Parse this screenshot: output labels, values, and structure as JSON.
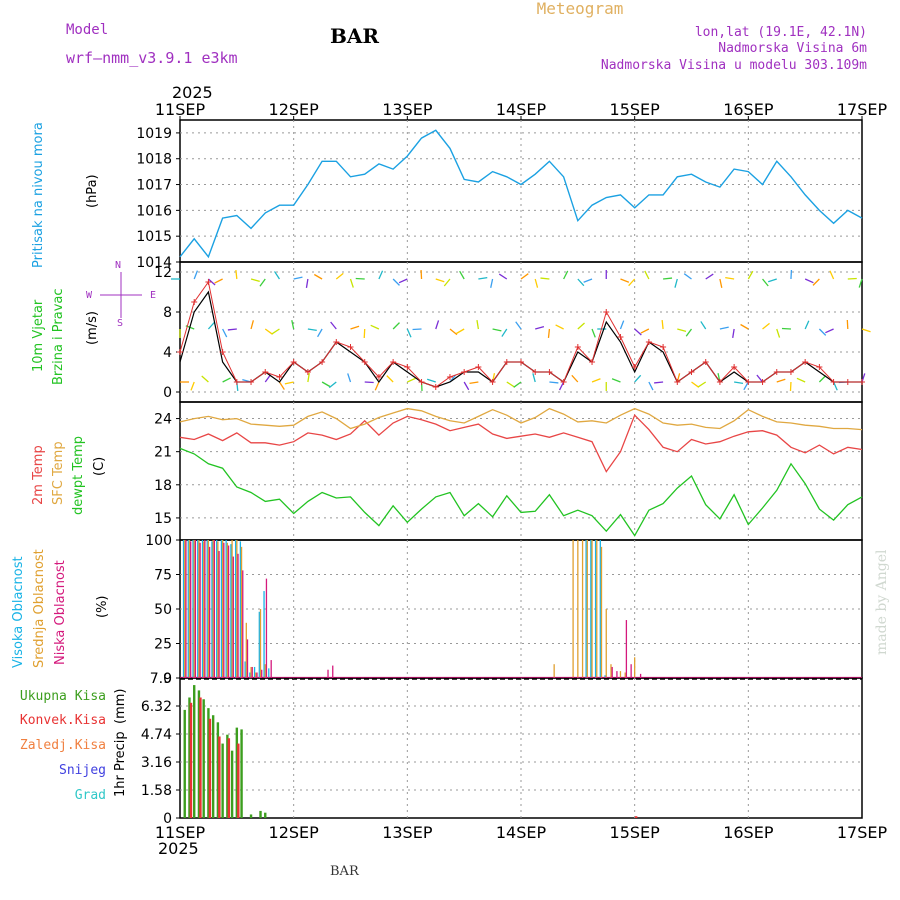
{
  "header": {
    "model_label": "Model",
    "model_name": "wrf—nmm_v3.9.1  e3km",
    "station": "BAR",
    "title": "Meteogram",
    "coords": "lon,lat (19.1E, 42.1N)",
    "elevation": "Nadmorska Visina 6m",
    "model_elevation": "Nadmorska Visina u modelu 303.109m",
    "footer_station": "BAR",
    "credit": "made by Angel",
    "year": "2025"
  },
  "colors": {
    "pressure": "#1ba1e2",
    "temp2m": "#e84646",
    "sfc": "#e0a841",
    "dewpt": "#22c322",
    "high_cloud": "#19b3e6",
    "mid_cloud": "#e0a030",
    "low_cloud": "#d4197c",
    "precip_total": "#3c9e1e",
    "precip_conv": "#e83232",
    "precip_frz": "#f08040",
    "snow": "#4040e0",
    "graupel": "#30c8c8",
    "wind_dir": "#7a2ed6",
    "speed": "#000000",
    "gust": "#e03030",
    "header_purple": "#a030c0",
    "title_orange": "#e0b060"
  },
  "chart_data": [
    {
      "type": "line",
      "id": "pressure",
      "ylabel_main": "Pritisak na nivou mora",
      "ylabel_unit": "(hPa)",
      "ylim": [
        1014,
        1019.5
      ],
      "yticks": [
        1014,
        1015,
        1016,
        1017,
        1018,
        1019
      ],
      "x_hours": [
        0,
        3,
        6,
        9,
        12,
        15,
        18,
        21,
        24,
        27,
        30,
        33,
        36,
        39,
        42,
        45,
        48,
        51,
        54,
        57,
        60,
        63,
        66,
        69,
        72,
        75,
        78,
        81,
        84,
        87,
        90,
        93,
        96,
        99,
        102,
        105,
        108,
        111,
        114,
        117,
        120,
        123,
        126,
        129,
        132,
        135,
        138,
        141,
        144
      ],
      "values": [
        1014.2,
        1014.9,
        1014.2,
        1015.7,
        1015.8,
        1015.3,
        1015.9,
        1016.2,
        1016.2,
        1017.0,
        1017.9,
        1017.9,
        1017.3,
        1017.4,
        1017.8,
        1017.6,
        1018.1,
        1018.8,
        1019.1,
        1018.4,
        1017.2,
        1017.1,
        1017.5,
        1017.3,
        1017.0,
        1017.4,
        1017.9,
        1017.3,
        1015.6,
        1016.2,
        1016.5,
        1016.6,
        1016.1,
        1016.6,
        1016.6,
        1017.3,
        1017.4,
        1017.1,
        1016.9,
        1017.6,
        1017.5,
        1017.0,
        1017.9,
        1017.3,
        1016.6,
        1016.0,
        1015.5,
        1016.0,
        1015.7
      ],
      "series": [
        {
          "name": "Pritisak na nivou mora",
          "color": "#1ba1e2"
        }
      ]
    },
    {
      "type": "line",
      "id": "wind",
      "ylabel_main": "10m Vjetar",
      "ylabel_sub": "Brzina i Pravac",
      "ylabel_unit": "(m/s)",
      "compass": {
        "n": "N",
        "e": "E",
        "w": "W",
        "s": "S"
      },
      "ylim": [
        -1,
        13
      ],
      "yticks": [
        0,
        4,
        8,
        12
      ],
      "x_hours": [
        0,
        3,
        6,
        9,
        12,
        15,
        18,
        21,
        24,
        27,
        30,
        33,
        36,
        39,
        42,
        45,
        48,
        51,
        54,
        57,
        60,
        63,
        66,
        69,
        72,
        75,
        78,
        81,
        84,
        87,
        90,
        93,
        96,
        99,
        102,
        105,
        108,
        111,
        114,
        117,
        120,
        123,
        126,
        129,
        132,
        135,
        138,
        141,
        144
      ],
      "speed": [
        3,
        8,
        10,
        3,
        1,
        1,
        2,
        1,
        3,
        2,
        3,
        5,
        4,
        3,
        1,
        3,
        2,
        1,
        0.5,
        1,
        2,
        2,
        1,
        3,
        3,
        2,
        2,
        1,
        4,
        3,
        7,
        5,
        2,
        5,
        4,
        1,
        2,
        3,
        1,
        2,
        1,
        1,
        2,
        2,
        3,
        2,
        1,
        1,
        1
      ],
      "gust": [
        4,
        9,
        11,
        4,
        1,
        1,
        2,
        1.5,
        3,
        2,
        3,
        5,
        4.5,
        3,
        1.5,
        3,
        2.5,
        1,
        0.5,
        1.5,
        2,
        2.5,
        1,
        3,
        3,
        2,
        2,
        1,
        4.5,
        3,
        8,
        5.5,
        2.5,
        5,
        4.5,
        1,
        2,
        3,
        1,
        2.5,
        1,
        1,
        2,
        2,
        3,
        2.5,
        1,
        1,
        1
      ],
      "ribbons": [
        1,
        6.3,
        11.3
      ],
      "series": [
        {
          "name": "Brzina",
          "color": "#000000"
        },
        {
          "name": "Udari",
          "color": "#e03030"
        }
      ]
    },
    {
      "type": "line",
      "id": "temperature",
      "ylabel_lines": [
        "2m Temp",
        "SFC Temp",
        "dewpt Temp"
      ],
      "ylabel_unit": "(C)",
      "ylim": [
        13,
        25.5
      ],
      "yticks": [
        15,
        18,
        21,
        24
      ],
      "x_hours": [
        0,
        3,
        6,
        9,
        12,
        15,
        18,
        21,
        24,
        27,
        30,
        33,
        36,
        39,
        42,
        45,
        48,
        51,
        54,
        57,
        60,
        63,
        66,
        69,
        72,
        75,
        78,
        81,
        84,
        87,
        90,
        93,
        96,
        99,
        102,
        105,
        108,
        111,
        114,
        117,
        120,
        123,
        126,
        129,
        132,
        135,
        138,
        141,
        144
      ],
      "series": [
        {
          "name": "2m Temp",
          "color": "#e84646",
          "values": [
            22.3,
            22.1,
            22.6,
            22.0,
            22.7,
            21.8,
            21.8,
            21.6,
            21.9,
            22.7,
            22.5,
            22.1,
            22.6,
            23.8,
            22.5,
            23.6,
            24.2,
            23.9,
            23.5,
            22.9,
            23.2,
            23.5,
            22.6,
            22.2,
            22.4,
            22.6,
            22.3,
            22.7,
            22.3,
            21.9,
            19.2,
            21.0,
            24.3,
            23.0,
            21.4,
            21.0,
            22.1,
            21.7,
            21.9,
            22.4,
            22.8,
            22.9,
            22.5,
            21.4,
            20.9,
            21.6,
            20.8,
            21.4,
            21.2
          ]
        },
        {
          "name": "SFC Temp",
          "color": "#e0a841",
          "values": [
            23.7,
            24.0,
            24.2,
            23.9,
            24.0,
            23.5,
            23.4,
            23.3,
            23.4,
            24.2,
            24.6,
            24.0,
            23.1,
            23.5,
            24.1,
            24.5,
            24.9,
            24.7,
            24.2,
            23.8,
            23.6,
            24.2,
            24.8,
            24.3,
            23.6,
            24.1,
            24.9,
            24.4,
            23.7,
            23.8,
            23.6,
            24.3,
            24.9,
            24.4,
            23.6,
            23.4,
            23.5,
            23.2,
            23.1,
            23.8,
            24.8,
            24.2,
            23.7,
            23.6,
            23.4,
            23.3,
            23.1,
            23.1,
            23.0
          ]
        },
        {
          "name": "dewpt Temp",
          "color": "#22c322",
          "values": [
            21.3,
            20.8,
            19.9,
            19.5,
            17.8,
            17.3,
            16.5,
            16.7,
            15.4,
            16.5,
            17.3,
            16.8,
            16.9,
            15.5,
            14.3,
            16.1,
            14.6,
            15.8,
            16.9,
            17.3,
            15.2,
            16.3,
            15.1,
            17.0,
            15.5,
            15.6,
            17.1,
            15.2,
            15.7,
            15.2,
            13.8,
            15.3,
            13.4,
            15.7,
            16.3,
            17.7,
            18.8,
            16.2,
            14.9,
            17.1,
            14.4,
            15.9,
            17.5,
            19.9,
            18.1,
            15.8,
            14.8,
            16.2,
            16.9
          ]
        }
      ]
    },
    {
      "type": "bar",
      "id": "clouds",
      "ylabel_lines": [
        "Visoka Oblacnost",
        "Srednja Oblacnost",
        "Niska Oblacnost"
      ],
      "ylabel_unit": "(%)",
      "ylim": [
        0,
        100
      ],
      "yticks": [
        0,
        25,
        50,
        75,
        100
      ],
      "series": [
        {
          "name": "Visoka Oblacnost",
          "color": "#19b3e6",
          "points": [
            [
              1,
              100
            ],
            [
              2,
              100
            ],
            [
              3,
              100
            ],
            [
              4,
              100
            ],
            [
              5,
              100
            ],
            [
              6,
              100
            ],
            [
              7,
              99
            ],
            [
              8,
              100
            ],
            [
              9,
              100
            ],
            [
              10,
              100
            ],
            [
              11,
              97
            ],
            [
              12,
              100
            ],
            [
              13,
              99
            ],
            [
              14,
              12
            ],
            [
              15,
              4
            ],
            [
              16,
              8
            ],
            [
              17,
              48
            ],
            [
              18,
              63
            ],
            [
              19,
              7
            ],
            [
              86,
              100
            ],
            [
              87,
              100
            ],
            [
              88,
              100
            ],
            [
              89,
              100
            ],
            [
              90,
              2
            ]
          ]
        },
        {
          "name": "Srednja Oblacnost",
          "color": "#e0a030",
          "points": [
            [
              1,
              100
            ],
            [
              2,
              100
            ],
            [
              3,
              100
            ],
            [
              4,
              100
            ],
            [
              5,
              99
            ],
            [
              6,
              100
            ],
            [
              7,
              100
            ],
            [
              8,
              99
            ],
            [
              9,
              100
            ],
            [
              10,
              98
            ],
            [
              11,
              100
            ],
            [
              12,
              100
            ],
            [
              13,
              95
            ],
            [
              14,
              40
            ],
            [
              15,
              8
            ],
            [
              16,
              4
            ],
            [
              17,
              50
            ],
            [
              18,
              10
            ],
            [
              79,
              10
            ],
            [
              83,
              100
            ],
            [
              84,
              100
            ],
            [
              85,
              100
            ],
            [
              86,
              100
            ],
            [
              87,
              100
            ],
            [
              88,
              100
            ],
            [
              89,
              95
            ],
            [
              90,
              50
            ],
            [
              91,
              10
            ],
            [
              93,
              5
            ],
            [
              94,
              4
            ],
            [
              96,
              15
            ]
          ]
        },
        {
          "name": "Niska Oblacnost",
          "color": "#d4197c",
          "points": [
            [
              1,
              100
            ],
            [
              2,
              99
            ],
            [
              3,
              100
            ],
            [
              4,
              98
            ],
            [
              5,
              100
            ],
            [
              6,
              95
            ],
            [
              7,
              100
            ],
            [
              8,
              92
            ],
            [
              9,
              98
            ],
            [
              10,
              96
            ],
            [
              11,
              88
            ],
            [
              12,
              90
            ],
            [
              13,
              78
            ],
            [
              14,
              28
            ],
            [
              15,
              8
            ],
            [
              16,
              4
            ],
            [
              17,
              6
            ],
            [
              18,
              72
            ],
            [
              19,
              13
            ],
            [
              31,
              6
            ],
            [
              32,
              9
            ],
            [
              91,
              8
            ],
            [
              92,
              5
            ],
            [
              94,
              42
            ],
            [
              95,
              10
            ],
            [
              97,
              3
            ]
          ]
        }
      ]
    },
    {
      "type": "bar",
      "id": "precipitation",
      "ylabel_main": "1hr Precip",
      "ylabel_unit": "(mm)",
      "legend": [
        "Ukupna Kisa",
        "Konvek.Kisa",
        "Zaledj.Kisa",
        "Snijeg",
        "Grad"
      ],
      "ylim": [
        0,
        7.9
      ],
      "yticks": [
        0,
        1.58,
        3.16,
        4.74,
        6.32,
        7.9
      ],
      "series": [
        {
          "name": "Ukupna Kisa",
          "color": "#3c9e1e",
          "points": [
            [
              1,
              6.1
            ],
            [
              2,
              6.8
            ],
            [
              3,
              7.5
            ],
            [
              4,
              7.2
            ],
            [
              5,
              6.7
            ],
            [
              6,
              6.2
            ],
            [
              7,
              5.8
            ],
            [
              8,
              5.4
            ],
            [
              9,
              4.2
            ],
            [
              10,
              4.7
            ],
            [
              11,
              3.8
            ],
            [
              12,
              5.1
            ],
            [
              13,
              5.0
            ],
            [
              15,
              0.2
            ],
            [
              17,
              0.4
            ],
            [
              18,
              0.3
            ]
          ]
        },
        {
          "name": "Konvek.Kisa",
          "color": "#e83232",
          "points": [
            [
              2,
              6.5
            ],
            [
              4,
              6.8
            ],
            [
              6,
              5.6
            ],
            [
              8,
              4.6
            ],
            [
              10,
              4.5
            ],
            [
              12,
              4.2
            ],
            [
              96,
              0.1
            ]
          ]
        }
      ]
    }
  ],
  "time_axis": {
    "labels": [
      "11SEP",
      "12SEP",
      "13SEP",
      "14SEP",
      "15SEP",
      "16SEP",
      "17SEP"
    ],
    "hours_total": 144
  }
}
